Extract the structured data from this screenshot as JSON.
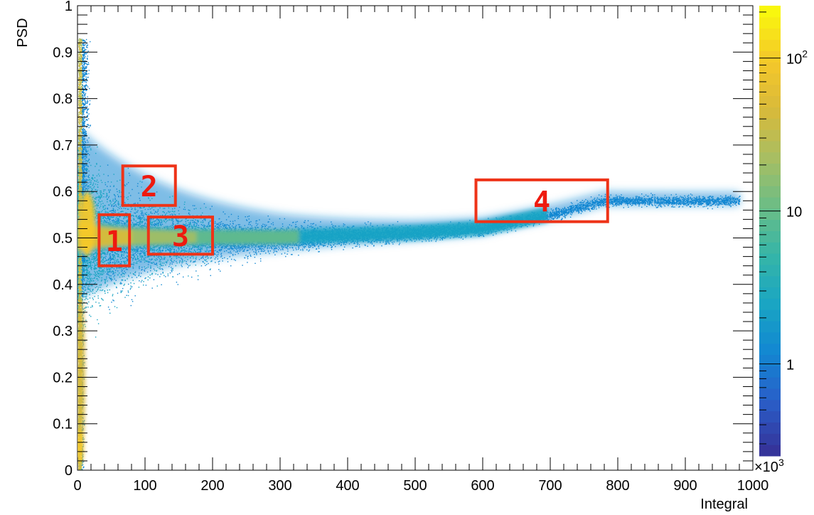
{
  "chart_data": {
    "type": "heatmap",
    "title": "",
    "xlabel": "Integral",
    "ylabel": "PSD",
    "x_multiplier_label": "×10",
    "x_multiplier_exp": "3",
    "xlim": [
      0,
      1000
    ],
    "ylim": [
      0,
      1
    ],
    "x_ticks": [
      0,
      100,
      200,
      300,
      400,
      500,
      600,
      700,
      800,
      900,
      1000
    ],
    "x_tick_labels": [
      "0",
      "100",
      "200",
      "300",
      "400",
      "500",
      "600",
      "700",
      "800",
      "900",
      "1000"
    ],
    "y_ticks": [
      0,
      0.1,
      0.2,
      0.3,
      0.4,
      0.5,
      0.6,
      0.7,
      0.8,
      0.9,
      1
    ],
    "y_tick_labels": [
      "0",
      "0.1",
      "0.2",
      "0.3",
      "0.4",
      "0.5",
      "0.6",
      "0.7",
      "0.8",
      "0.9",
      "1"
    ],
    "colorbar": {
      "scale": "log",
      "range": [
        0.25,
        220
      ],
      "ticks": [
        1,
        10,
        100
      ],
      "tick_labels": [
        {
          "base": "1",
          "exp": ""
        },
        {
          "base": "10",
          "exp": ""
        },
        {
          "base": "10",
          "exp": "2"
        }
      ],
      "colors": [
        "#35349a",
        "#2a5ec8",
        "#1287d2",
        "#1aa5c3",
        "#35b5a8",
        "#6bbd86",
        "#a8be62",
        "#d9ba3a",
        "#f5c82a",
        "#f9f70e"
      ]
    },
    "density_bands": [
      {
        "description": "main ridge",
        "x": [
          0,
          30,
          60,
          100,
          150,
          200,
          300,
          400,
          500,
          600,
          700,
          780
        ],
        "center": [
          0.5,
          0.5,
          0.5,
          0.5,
          0.5,
          0.5,
          0.5,
          0.505,
          0.51,
          0.52,
          0.55,
          0.58
        ]
      },
      {
        "description": "low-integral vertical band",
        "x": [
          5,
          15
        ],
        "y": [
          0,
          0.93
        ]
      }
    ],
    "regions": [
      {
        "label": "1",
        "x": [
          32,
          77
        ],
        "y": [
          0.44,
          0.55
        ]
      },
      {
        "label": "2",
        "x": [
          67,
          145
        ],
        "y": [
          0.57,
          0.655
        ]
      },
      {
        "label": "3",
        "x": [
          105,
          200
        ],
        "y": [
          0.465,
          0.545
        ]
      },
      {
        "label": "4",
        "x": [
          590,
          785
        ],
        "y": [
          0.535,
          0.625
        ]
      }
    ],
    "region_color": "#ee3318",
    "grid": false
  }
}
